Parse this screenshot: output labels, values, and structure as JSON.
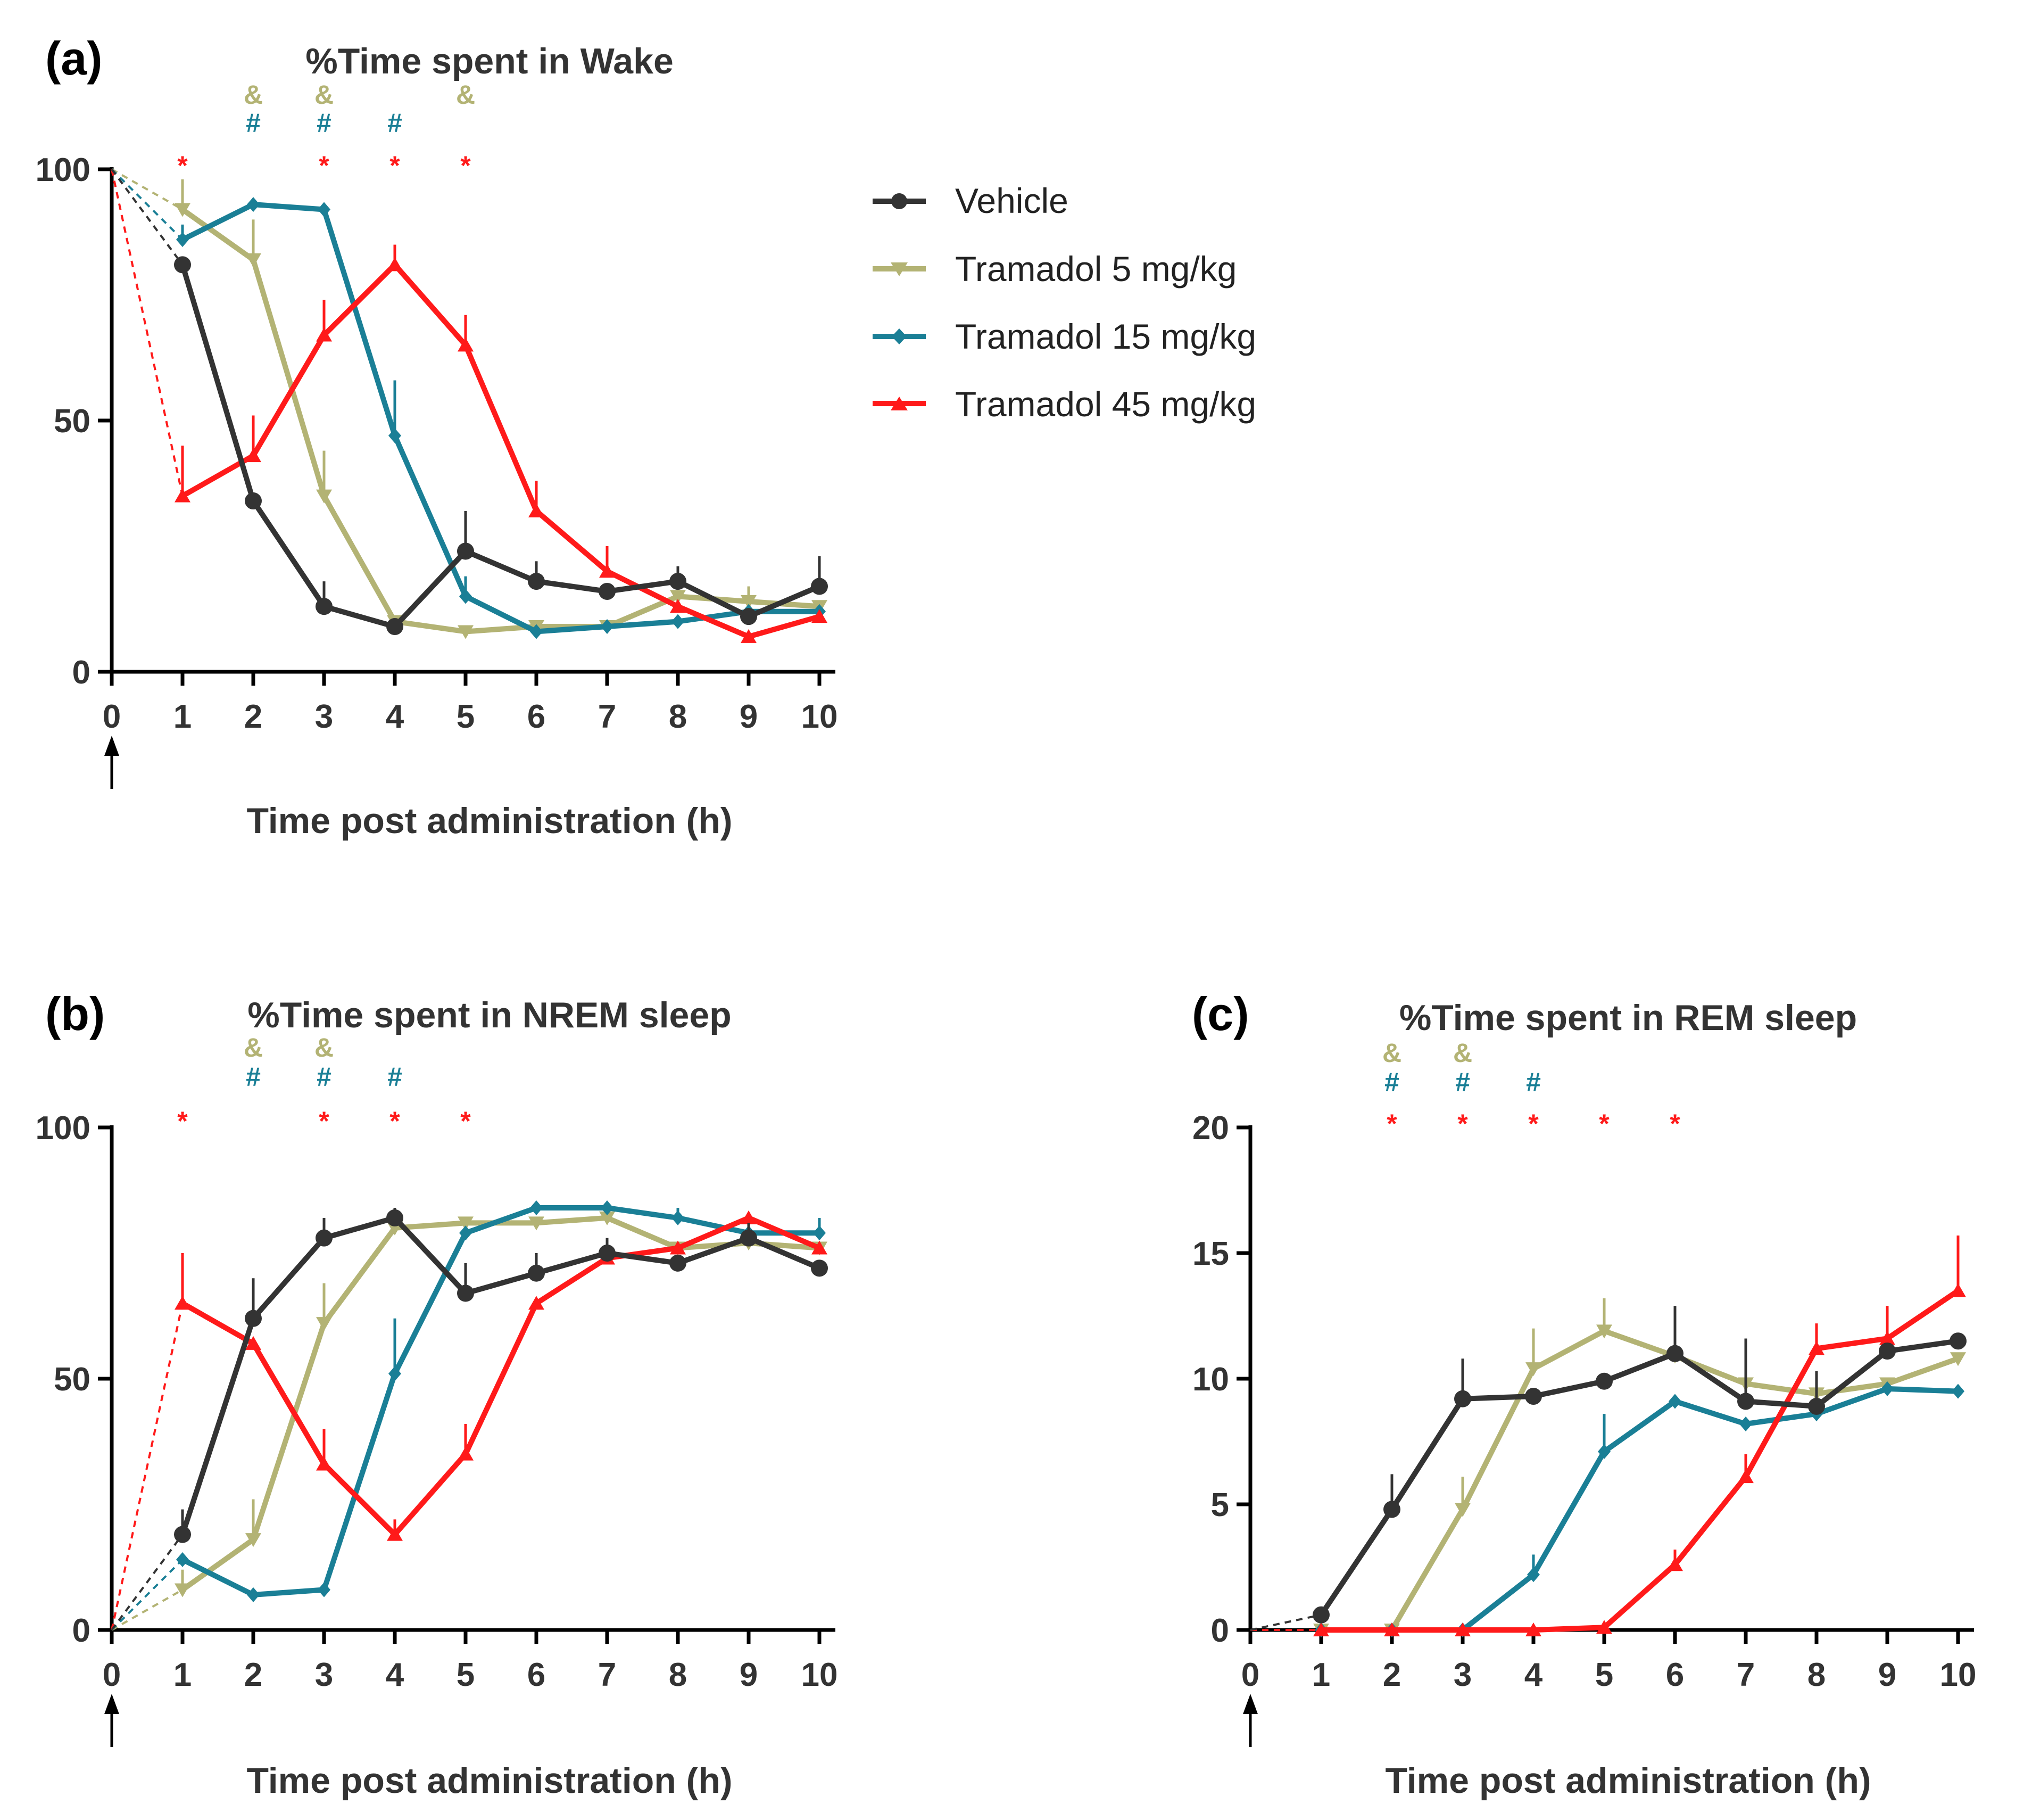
{
  "chart_data": [
    {
      "panel": "(a)",
      "type": "line",
      "title": "%Time spent in Wake",
      "xlabel": "Time post administration (h)",
      "ylabel": "",
      "x_ticks": [
        "0",
        "1",
        "2",
        "3",
        "4",
        "5",
        "6",
        "7",
        "8",
        "9",
        "10"
      ],
      "xlim": [
        0,
        10
      ],
      "y_ticks": [
        "0",
        "50",
        "100"
      ],
      "ylim": [
        0,
        100
      ],
      "baseline_value": 100,
      "administration_marker": "0",
      "series": [
        {
          "name": "Vehicle",
          "x": [
            1,
            2,
            3,
            4,
            5,
            6,
            7,
            8,
            9,
            10
          ],
          "values": [
            81,
            34,
            13,
            9,
            24,
            18,
            16,
            18,
            11,
            17
          ],
          "err": [
            0,
            0,
            5,
            0,
            8,
            4,
            0,
            3,
            0,
            6
          ]
        },
        {
          "name": "Tramadol 5 mg/kg",
          "x": [
            1,
            2,
            3,
            4,
            5,
            6,
            7,
            8,
            9,
            10
          ],
          "values": [
            92,
            82,
            35,
            10,
            8,
            9,
            9,
            15,
            14,
            13
          ],
          "err": [
            6,
            8,
            9,
            0,
            0,
            0,
            0,
            0,
            3,
            0
          ]
        },
        {
          "name": "Tramadol 15 mg/kg",
          "x": [
            1,
            2,
            3,
            4,
            5,
            6,
            7,
            8,
            9,
            10
          ],
          "values": [
            86,
            93,
            92,
            47,
            15,
            8,
            9,
            10,
            12,
            12
          ],
          "err": [
            3,
            0,
            0,
            11,
            4,
            0,
            0,
            0,
            0,
            0
          ]
        },
        {
          "name": "Tramadol 45 mg/kg",
          "x": [
            1,
            2,
            3,
            4,
            5,
            6,
            7,
            8,
            9,
            10
          ],
          "values": [
            35,
            43,
            67,
            81,
            65,
            32,
            20,
            13,
            7,
            11
          ],
          "err": [
            10,
            8,
            7,
            4,
            6,
            6,
            5,
            0,
            0,
            0
          ]
        }
      ],
      "significance": [
        {
          "symbol": "&",
          "series": "Tramadol 5 mg/kg",
          "x": [
            2,
            3,
            5
          ]
        },
        {
          "symbol": "#",
          "series": "Tramadol 15 mg/kg",
          "x": [
            2,
            3,
            4
          ]
        },
        {
          "symbol": "*",
          "series": "Tramadol 45 mg/kg",
          "x": [
            1,
            3,
            4,
            5
          ]
        }
      ]
    },
    {
      "panel": "(b)",
      "type": "line",
      "title": "%Time spent in NREM sleep",
      "xlabel": "Time post administration (h)",
      "ylabel": "",
      "x_ticks": [
        "0",
        "1",
        "2",
        "3",
        "4",
        "5",
        "6",
        "7",
        "8",
        "9",
        "10"
      ],
      "xlim": [
        0,
        10
      ],
      "y_ticks": [
        "0",
        "50",
        "100"
      ],
      "ylim": [
        0,
        100
      ],
      "baseline_value": 0,
      "administration_marker": "0",
      "series": [
        {
          "name": "Vehicle",
          "x": [
            1,
            2,
            3,
            4,
            5,
            6,
            7,
            8,
            9,
            10
          ],
          "values": [
            19,
            62,
            78,
            82,
            67,
            71,
            75,
            73,
            78,
            72
          ],
          "err": [
            5,
            8,
            4,
            2,
            6,
            4,
            3,
            0,
            3,
            0
          ]
        },
        {
          "name": "Tramadol 5 mg/kg",
          "x": [
            1,
            2,
            3,
            4,
            5,
            6,
            7,
            8,
            9,
            10
          ],
          "values": [
            8,
            18,
            61,
            80,
            81,
            81,
            82,
            76,
            77,
            76
          ],
          "err": [
            4,
            8,
            8,
            0,
            0,
            0,
            0,
            0,
            0,
            0
          ]
        },
        {
          "name": "Tramadol 15 mg/kg",
          "x": [
            1,
            2,
            3,
            4,
            5,
            6,
            7,
            8,
            9,
            10
          ],
          "values": [
            14,
            7,
            8,
            51,
            79,
            84,
            84,
            82,
            79,
            79
          ],
          "err": [
            0,
            0,
            0,
            11,
            0,
            0,
            0,
            2,
            0,
            3
          ]
        },
        {
          "name": "Tramadol 45 mg/kg",
          "x": [
            1,
            2,
            3,
            4,
            5,
            6,
            7,
            8,
            9,
            10
          ],
          "values": [
            65,
            57,
            33,
            19,
            35,
            65,
            74,
            76,
            82,
            76
          ],
          "err": [
            10,
            0,
            7,
            3,
            6,
            0,
            0,
            0,
            0,
            0
          ]
        }
      ],
      "significance": [
        {
          "symbol": "&",
          "series": "Tramadol 5 mg/kg",
          "x": [
            2,
            3
          ]
        },
        {
          "symbol": "#",
          "series": "Tramadol 15 mg/kg",
          "x": [
            2,
            3,
            4
          ]
        },
        {
          "symbol": "*",
          "series": "Tramadol 45 mg/kg",
          "x": [
            1,
            3,
            4,
            5
          ]
        }
      ]
    },
    {
      "panel": "(c)",
      "type": "line",
      "title": "%Time spent in REM sleep",
      "xlabel": "Time post administration (h)",
      "ylabel": "",
      "x_ticks": [
        "0",
        "1",
        "2",
        "3",
        "4",
        "5",
        "6",
        "7",
        "8",
        "9",
        "10"
      ],
      "xlim": [
        0,
        10
      ],
      "y_ticks": [
        "0",
        "5",
        "10",
        "15",
        "20"
      ],
      "ylim": [
        0,
        20
      ],
      "baseline_value": 0,
      "administration_marker": "0",
      "series": [
        {
          "name": "Vehicle",
          "x": [
            1,
            2,
            3,
            4,
            5,
            6,
            7,
            8,
            9,
            10
          ],
          "values": [
            0.6,
            4.8,
            9.2,
            9.3,
            9.9,
            11.0,
            9.1,
            8.9,
            11.1,
            11.5
          ],
          "err": [
            0,
            1.4,
            1.6,
            0,
            0,
            1.9,
            2.5,
            1.4,
            0,
            0
          ]
        },
        {
          "name": "Tramadol 5 mg/kg",
          "x": [
            1,
            2,
            3,
            4,
            5,
            6,
            7,
            8,
            9,
            10
          ],
          "values": [
            0,
            0,
            4.8,
            10.4,
            11.9,
            10.9,
            9.8,
            9.4,
            9.8,
            10.8
          ],
          "err": [
            0,
            0,
            1.3,
            1.6,
            1.3,
            0,
            0,
            0,
            0,
            0
          ]
        },
        {
          "name": "Tramadol 15 mg/kg",
          "x": [
            1,
            2,
            3,
            4,
            5,
            6,
            7,
            8,
            9,
            10
          ],
          "values": [
            0,
            0,
            0,
            2.2,
            7.1,
            9.1,
            8.2,
            8.6,
            9.6,
            9.5
          ],
          "err": [
            0,
            0,
            0,
            0.8,
            1.5,
            0,
            0,
            0,
            0,
            0
          ]
        },
        {
          "name": "Tramadol 45 mg/kg",
          "x": [
            1,
            2,
            3,
            4,
            5,
            6,
            7,
            8,
            9,
            10
          ],
          "values": [
            0,
            0,
            0,
            0,
            0.1,
            2.6,
            6.1,
            11.2,
            11.6,
            13.5
          ],
          "err": [
            0,
            0,
            0,
            0,
            0,
            0.6,
            0.9,
            1.0,
            1.3,
            2.2
          ]
        }
      ],
      "significance": [
        {
          "symbol": "&",
          "series": "Tramadol 5 mg/kg",
          "x": [
            2,
            3
          ]
        },
        {
          "symbol": "#",
          "series": "Tramadol 15 mg/kg",
          "x": [
            2,
            3,
            4
          ]
        },
        {
          "symbol": "*",
          "series": "Tramadol 45 mg/kg",
          "x": [
            2,
            3,
            4,
            5,
            6
          ]
        }
      ]
    }
  ],
  "legend": {
    "entries": [
      {
        "label": "Vehicle",
        "color": "#333333",
        "marker": "circle"
      },
      {
        "label": "Tramadol 5 mg/kg",
        "color": "#b3b374",
        "marker": "triangle-down"
      },
      {
        "label": "Tramadol 15 mg/kg",
        "color": "#1a7f96",
        "marker": "diamond"
      },
      {
        "label": "Tramadol 45 mg/kg",
        "color": "#ff1a1a",
        "marker": "triangle-up"
      }
    ]
  },
  "colors": {
    "Vehicle": "#333333",
    "Tramadol 5 mg/kg": "#b3b374",
    "Tramadol 15 mg/kg": "#1a7f96",
    "Tramadol 45 mg/kg": "#ff1a1a",
    "axis": "#000000"
  }
}
